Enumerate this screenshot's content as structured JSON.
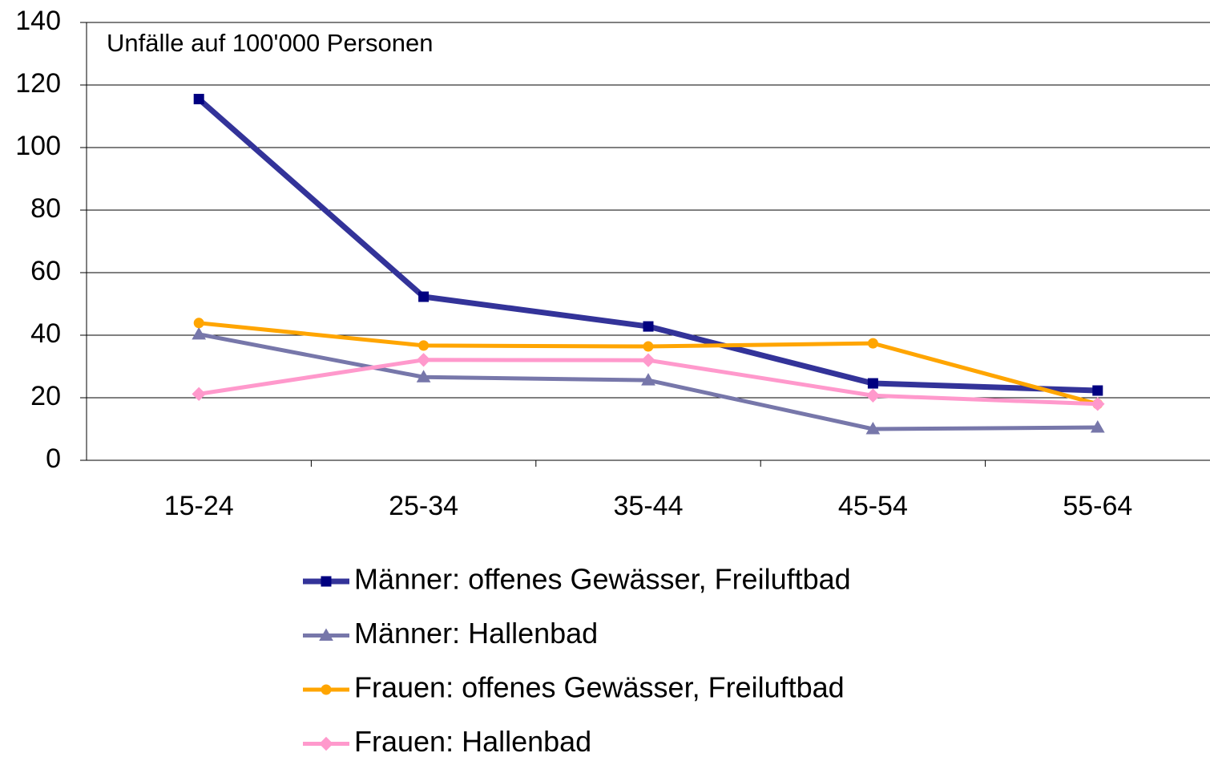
{
  "chart_data": {
    "type": "line",
    "annotation": "Unfälle auf 100'000 Personen",
    "categories": [
      "15-24",
      "25-34",
      "35-44",
      "45-54",
      "55-64"
    ],
    "series": [
      {
        "name": "Männer: offenes Gewässer, Freiluftbad",
        "color": "#333399",
        "marker": "square",
        "values": [
          115.5,
          52.3,
          42.8,
          24.6,
          22.3
        ]
      },
      {
        "name": "Männer: Hallenbad",
        "color": "#7777aa",
        "marker": "triangle",
        "values": [
          40.3,
          26.6,
          25.6,
          10,
          10.5
        ]
      },
      {
        "name": "Frauen: offenes Gewässer, Freiluftbad",
        "color": "#ffa500",
        "marker": "circle",
        "values": [
          43.9,
          36.7,
          36.4,
          37.4,
          18
        ]
      },
      {
        "name": "Frauen: Hallenbad",
        "color": "#ff99cc",
        "marker": "diamond",
        "values": [
          21.2,
          32.1,
          32,
          20.7,
          18
        ]
      }
    ],
    "ylim": [
      0,
      140
    ],
    "yticks": [
      0,
      20,
      40,
      60,
      80,
      100,
      120,
      140
    ],
    "grid": true,
    "legend": "bottom"
  }
}
